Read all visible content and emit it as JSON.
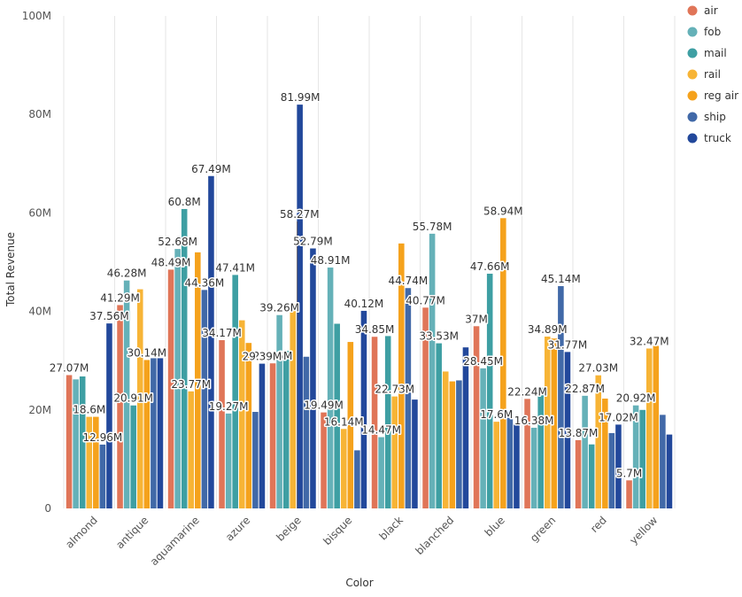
{
  "chart_data": {
    "type": "bar",
    "xlabel": "Color",
    "ylabel": "Total Revenue",
    "ylim": [
      0,
      100000000
    ],
    "y_ticks": [
      0,
      20000000,
      40000000,
      60000000,
      80000000,
      100000000
    ],
    "y_tick_labels": [
      "0",
      "20M",
      "40M",
      "60M",
      "80M",
      "100M"
    ],
    "grid": "vertical",
    "legend_position": "top-right",
    "categories": [
      "almond",
      "antique",
      "aquamarine",
      "azure",
      "beige",
      "bisque",
      "black",
      "blanched",
      "blue",
      "green",
      "red",
      "yellow"
    ],
    "series": [
      {
        "name": "air",
        "color": "#e07558",
        "values": [
          27.07,
          41.29,
          48.49,
          34.17,
          29.46,
          19.49,
          34.85,
          40.77,
          37.0,
          22.24,
          13.87,
          5.7
        ],
        "labels": [
          "27.07M",
          "41.29M",
          "48.49M",
          "34.17M",
          "29.46M",
          "19.49M",
          "34.85M",
          "40.77M",
          "37M",
          "22.24M",
          "13.87M",
          "5.7M"
        ]
      },
      {
        "name": "fob",
        "color": "#65b1b8",
        "values": [
          26.2,
          46.28,
          52.68,
          19.27,
          39.26,
          48.91,
          14.47,
          55.78,
          28.45,
          16.38,
          22.87,
          20.92
        ],
        "labels": [
          "",
          "46.28M",
          "52.68M",
          "19.27M",
          "39.26M",
          "48.91M",
          "14.47M",
          "55.78M",
          "28.45M",
          "16.38M",
          "22.87M",
          "20.92M"
        ]
      },
      {
        "name": "mail",
        "color": "#3e9fa3",
        "values": [
          26.8,
          20.91,
          60.8,
          47.41,
          32.0,
          37.5,
          35.0,
          33.53,
          47.66,
          24.5,
          13.0,
          20.0
        ],
        "labels": [
          "",
          "20.91M",
          "60.8M",
          "47.41M",
          "",
          "",
          "",
          "33.53M",
          "47.66M",
          "",
          "",
          ""
        ]
      },
      {
        "name": "rail",
        "color": "#f7b436",
        "values": [
          18.6,
          44.5,
          23.77,
          38.2,
          41.5,
          16.14,
          22.73,
          27.8,
          17.6,
          34.89,
          27.03,
          32.47
        ],
        "labels": [
          "18.6M",
          "",
          "23.77M",
          "",
          "",
          "16.14M",
          "22.73M",
          "",
          "17.6M",
          "34.89M",
          "27.03M",
          "32.47M"
        ]
      },
      {
        "name": "reg air",
        "color": "#f5a21c",
        "values": [
          18.6,
          30.14,
          52.0,
          33.6,
          58.27,
          33.8,
          53.8,
          25.8,
          58.94,
          34.5,
          22.3,
          33.0
        ],
        "labels": [
          "",
          "30.14M",
          "",
          "",
          "58.27M",
          "",
          "",
          "",
          "58.94M",
          "",
          "",
          ""
        ]
      },
      {
        "name": "ship",
        "color": "#4169a8",
        "values": [
          12.96,
          30.5,
          44.36,
          19.6,
          30.8,
          11.8,
          44.74,
          26.0,
          19.2,
          45.14,
          15.3,
          19.0
        ],
        "labels": [
          "12.96M",
          "",
          "44.36M",
          "",
          "",
          "",
          "44.74M",
          "",
          "",
          "45.14M",
          "",
          ""
        ]
      },
      {
        "name": "truck",
        "color": "#22489b",
        "values": [
          37.56,
          30.5,
          67.49,
          29.39,
          52.79,
          40.12,
          22.1,
          32.7,
          17.0,
          31.77,
          17.02,
          15.0
        ],
        "labels": [
          "37.56M",
          "",
          "67.49M",
          "29.39M",
          "52.79M",
          "40.12M",
          "",
          "",
          "",
          "31.77M",
          "17.02M",
          ""
        ]
      }
    ],
    "extra_bars": {
      "beige": {
        "value": 81.99,
        "label": "81.99M",
        "color": "#22489b"
      }
    }
  }
}
